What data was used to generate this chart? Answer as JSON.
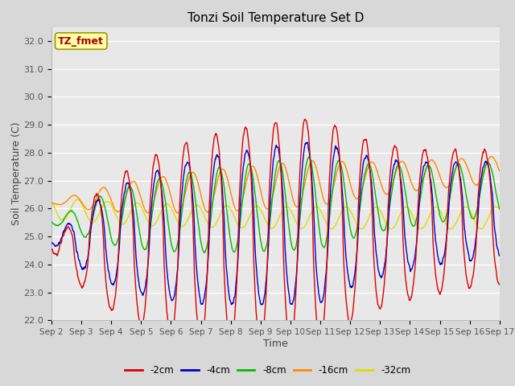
{
  "title": "Tonzi Soil Temperature Set D",
  "xlabel": "Time",
  "ylabel": "Soil Temperature (C)",
  "ylim": [
    22.0,
    32.5
  ],
  "yticks": [
    22.0,
    23.0,
    24.0,
    25.0,
    26.0,
    27.0,
    28.0,
    29.0,
    30.0,
    31.0,
    32.0
  ],
  "fig_bg_color": "#d8d8d8",
  "plot_bg_color": "#e8e8e8",
  "series_colors": [
    "#dd0000",
    "#0000cc",
    "#00bb00",
    "#ff8800",
    "#dddd00"
  ],
  "series_labels": [
    "-2cm",
    "-4cm",
    "-8cm",
    "-16cm",
    "-32cm"
  ],
  "annotation_text": "TZ_fmet",
  "annotation_color": "#aa0000",
  "annotation_bg": "#ffffaa",
  "annotation_border": "#999900",
  "x_start": 2.0,
  "x_end": 17.0,
  "xtick_days": [
    2,
    3,
    4,
    5,
    6,
    7,
    8,
    9,
    10,
    11,
    12,
    13,
    14,
    15,
    16,
    17
  ],
  "figsize": [
    6.4,
    4.8
  ],
  "dpi": 100
}
